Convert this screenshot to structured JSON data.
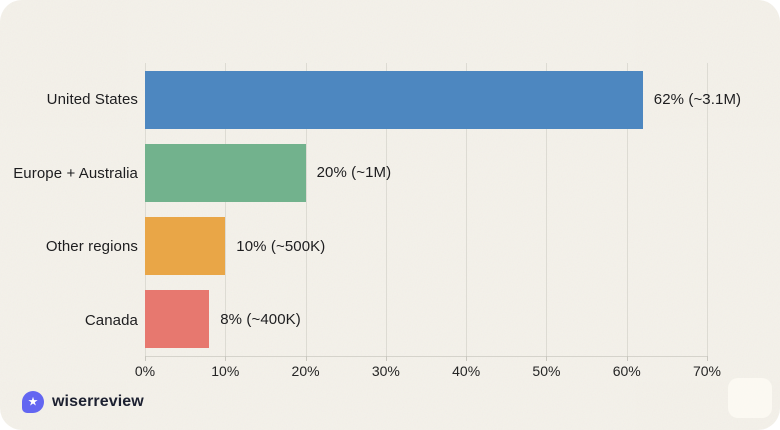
{
  "chart_data": {
    "type": "bar",
    "orientation": "horizontal",
    "title": "",
    "xlabel": "",
    "ylabel": "",
    "categories": [
      "United States",
      "Europe + Australia",
      "Other regions",
      "Canada"
    ],
    "values": [
      62,
      20,
      10,
      8
    ],
    "value_labels": [
      "62% (~3.1M)",
      "20% (~1M)",
      "10% (~500K)",
      "8% (~400K)"
    ],
    "bar_colors": [
      "#4d87c0",
      "#72b28d",
      "#e9a647",
      "#e7786f"
    ],
    "x_ticks": [
      "0%",
      "10%",
      "20%",
      "30%",
      "40%",
      "50%",
      "60%",
      "70%"
    ],
    "xlim": [
      0,
      70
    ],
    "grid": "vertical-only",
    "legend": "none",
    "plot_background": "#f4f1ea"
  },
  "footer": {
    "brand": "wiserreview",
    "logo_color": "#6366f1",
    "logo_glyph": "star"
  }
}
